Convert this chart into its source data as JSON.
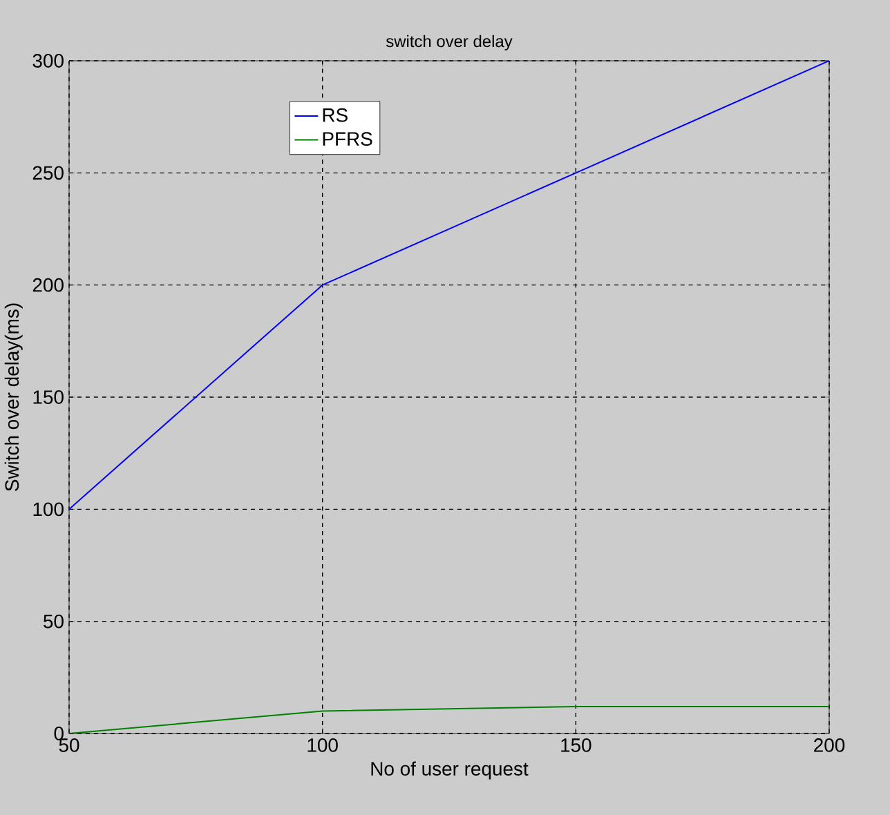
{
  "chart_data": {
    "type": "line",
    "title": "switch over delay",
    "xlabel": "No of user request",
    "ylabel": "Switch over delay(ms)",
    "x": [
      50,
      100,
      150,
      200
    ],
    "series": [
      {
        "name": "RS",
        "color": "#0000ff",
        "values": [
          100,
          200,
          250,
          300
        ]
      },
      {
        "name": "PFRS",
        "color": "#008000",
        "values": [
          0,
          10,
          12,
          12
        ]
      }
    ],
    "xlim": [
      50,
      200
    ],
    "xticks": [
      50,
      100,
      150,
      200
    ],
    "ylim": [
      0,
      300
    ],
    "yticks": [
      0,
      50,
      100,
      150,
      200,
      250,
      300
    ],
    "grid": true,
    "legend": "top left",
    "line_style": "solid",
    "marker": "none"
  }
}
